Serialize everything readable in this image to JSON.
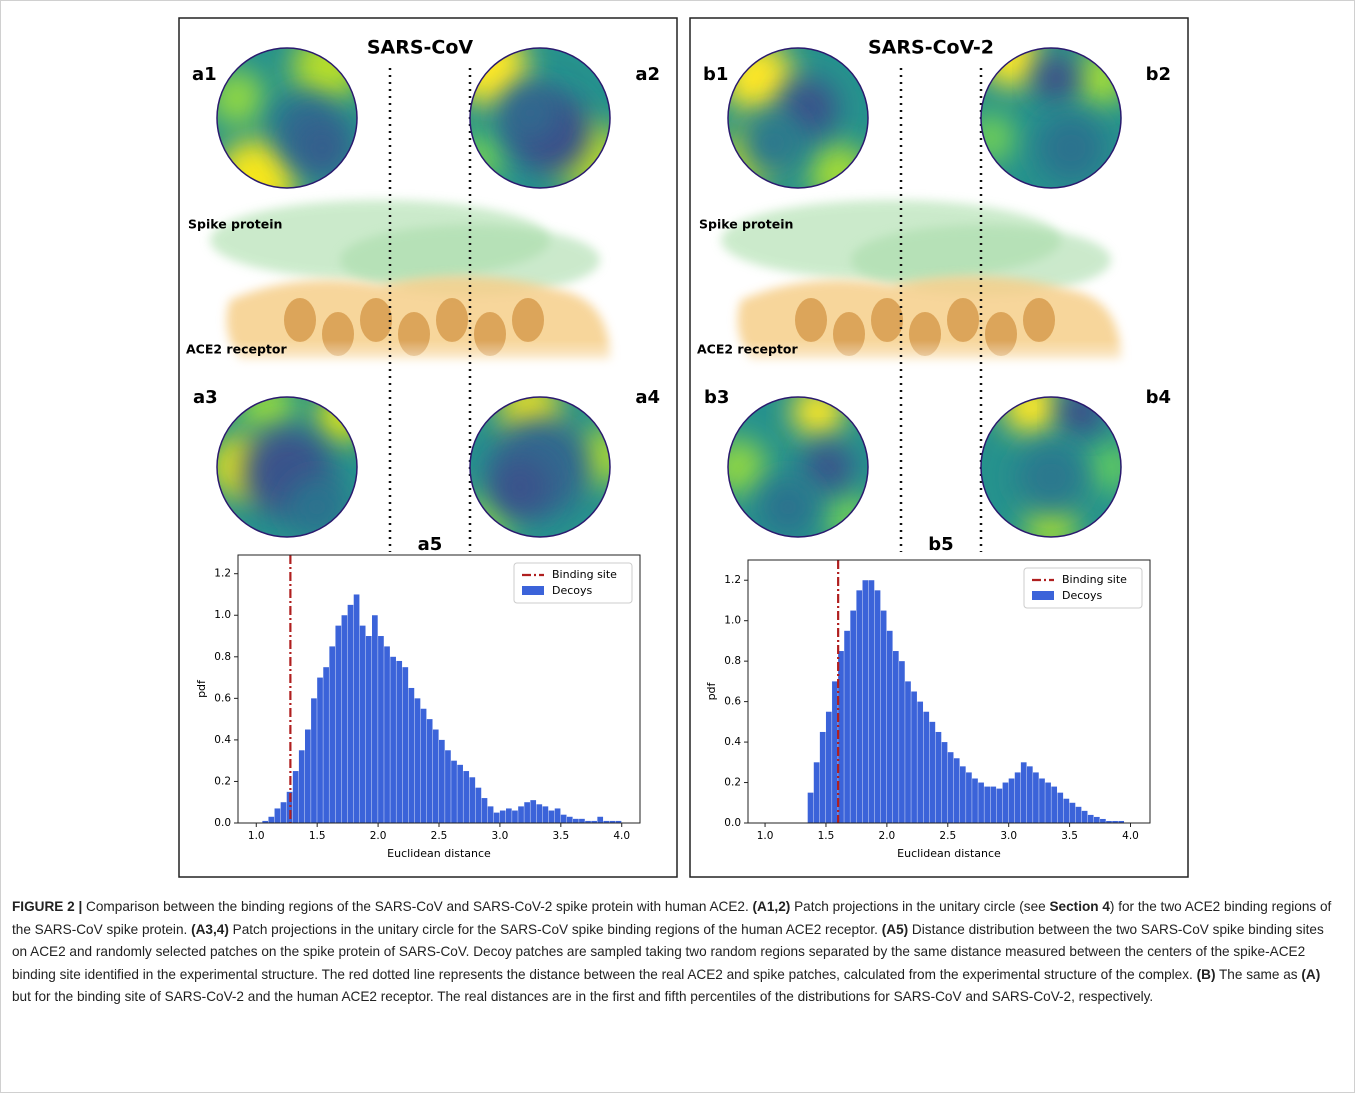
{
  "panels": [
    {
      "title": "SARS-CoV",
      "labels": [
        "a1",
        "a2",
        "a3",
        "a4",
        "a5"
      ],
      "spike_label": "Spike protein",
      "receptor_label": "ACE2 receptor"
    },
    {
      "title": "SARS-CoV-2",
      "labels": [
        "b1",
        "b2",
        "b3",
        "b4",
        "b5"
      ],
      "spike_label": "Spike protein",
      "receptor_label": "ACE2 receptor"
    }
  ],
  "chart_data": [
    {
      "type": "histogram",
      "xlabel": "Euclidean distance",
      "ylabel": "pdf",
      "bins": [
        1.0,
        1.05,
        1.1,
        1.15,
        1.2,
        1.25,
        1.3,
        1.35,
        1.4,
        1.45,
        1.5,
        1.55,
        1.6,
        1.65,
        1.7,
        1.75,
        1.8,
        1.85,
        1.9,
        1.95,
        2.0,
        2.05,
        2.1,
        2.15,
        2.2,
        2.25,
        2.3,
        2.35,
        2.4,
        2.45,
        2.5,
        2.55,
        2.6,
        2.65,
        2.7,
        2.75,
        2.8,
        2.85,
        2.9,
        2.95,
        3.0,
        3.05,
        3.1,
        3.15,
        3.2,
        3.25,
        3.3,
        3.35,
        3.4,
        3.45,
        3.5,
        3.55,
        3.6,
        3.65,
        3.7,
        3.75,
        3.8,
        3.85,
        3.9,
        3.95,
        4.0
      ],
      "series": [
        {
          "name": "Decoys",
          "color": "#3b63d9",
          "values": [
            0,
            0.01,
            0.03,
            0.07,
            0.1,
            0.15,
            0.25,
            0.35,
            0.45,
            0.6,
            0.7,
            0.75,
            0.85,
            0.95,
            1.0,
            1.05,
            1.1,
            0.95,
            0.9,
            1.0,
            0.9,
            0.85,
            0.8,
            0.78,
            0.75,
            0.65,
            0.6,
            0.55,
            0.5,
            0.45,
            0.4,
            0.35,
            0.3,
            0.28,
            0.25,
            0.22,
            0.17,
            0.12,
            0.08,
            0.05,
            0.06,
            0.07,
            0.06,
            0.08,
            0.1,
            0.11,
            0.09,
            0.08,
            0.06,
            0.07,
            0.04,
            0.03,
            0.02,
            0.02,
            0.01,
            0.01,
            0.03,
            0.01,
            0.01,
            0.01
          ]
        }
      ],
      "reference_line": {
        "name": "Binding site",
        "x": 1.28,
        "color": "#b01f1f"
      },
      "xlim": [
        0.85,
        4.15
      ],
      "ylim": [
        0,
        1.29
      ],
      "xticks": [
        {
          "value": 1.0,
          "label": "1.0"
        },
        1.5,
        {
          "value": 2.0,
          "label": "2.0"
        },
        2.5,
        {
          "value": 3.0,
          "label": "3.0"
        },
        3.5,
        {
          "value": 4.0,
          "label": "4.0"
        }
      ],
      "yticks": [
        {
          "value": 0,
          "label": "0.0"
        },
        0.2,
        0.4,
        0.6,
        0.8,
        {
          "value": 1.0,
          "label": "1.0"
        },
        1.2
      ],
      "legend": "upper right"
    },
    {
      "type": "histogram",
      "xlabel": "Euclidean distance",
      "ylabel": "pdf",
      "bins": [
        1.0,
        1.05,
        1.1,
        1.15,
        1.2,
        1.25,
        1.3,
        1.35,
        1.4,
        1.45,
        1.5,
        1.55,
        1.6,
        1.65,
        1.7,
        1.75,
        1.8,
        1.85,
        1.9,
        1.95,
        2.0,
        2.05,
        2.1,
        2.15,
        2.2,
        2.25,
        2.3,
        2.35,
        2.4,
        2.45,
        2.5,
        2.55,
        2.6,
        2.65,
        2.7,
        2.75,
        2.8,
        2.85,
        2.9,
        2.95,
        3.0,
        3.05,
        3.1,
        3.15,
        3.2,
        3.25,
        3.3,
        3.35,
        3.4,
        3.45,
        3.5,
        3.55,
        3.6,
        3.65,
        3.7,
        3.75,
        3.8,
        3.85,
        3.9,
        3.95,
        4.0
      ],
      "series": [
        {
          "name": "Decoys",
          "color": "#3b63d9",
          "values": [
            0,
            0,
            0,
            0,
            0,
            0,
            0,
            0.15,
            0.3,
            0.45,
            0.55,
            0.7,
            0.85,
            0.95,
            1.05,
            1.15,
            1.2,
            1.2,
            1.15,
            1.05,
            0.95,
            0.85,
            0.8,
            0.7,
            0.65,
            0.6,
            0.55,
            0.5,
            0.45,
            0.4,
            0.35,
            0.32,
            0.28,
            0.25,
            0.22,
            0.2,
            0.18,
            0.18,
            0.17,
            0.2,
            0.22,
            0.25,
            0.3,
            0.28,
            0.25,
            0.22,
            0.2,
            0.18,
            0.15,
            0.12,
            0.1,
            0.08,
            0.06,
            0.04,
            0.03,
            0.02,
            0.01,
            0.01,
            0.01,
            0
          ]
        }
      ],
      "reference_line": {
        "name": "Binding site",
        "x": 1.6,
        "color": "#b01f1f"
      },
      "xlim": [
        0.86,
        4.16
      ],
      "ylim": [
        0,
        1.3
      ],
      "xticks": [
        {
          "value": 1.0,
          "label": "1.0"
        },
        1.5,
        {
          "value": 2.0,
          "label": "2.0"
        },
        2.5,
        {
          "value": 3.0,
          "label": "3.0"
        },
        3.5,
        {
          "value": 4.0,
          "label": "4.0"
        }
      ],
      "yticks": [
        {
          "value": 0,
          "label": "0.0"
        },
        0.2,
        0.4,
        0.6,
        0.8,
        {
          "value": 1.0,
          "label": "1.0"
        },
        1.2
      ],
      "legend": "upper right"
    }
  ],
  "caption": [
    {
      "text": "FIGURE 2 |",
      "bold": true
    },
    {
      "text": " Comparison between the binding regions of the SARS-CoV and SARS-CoV-2 spike protein with human ACE2. "
    },
    {
      "text": "(A1,2)",
      "bold": true
    },
    {
      "text": " Patch projections in the unitary circle (see "
    },
    {
      "text": "Section 4",
      "bold": true
    },
    {
      "text": ") for the two ACE2 binding regions of the SARS-CoV spike protein. "
    },
    {
      "text": "(A3,4)",
      "bold": true
    },
    {
      "text": " Patch projections in the unitary circle for the SARS-CoV spike binding regions of the human ACE2 receptor. "
    },
    {
      "text": "(A5)",
      "bold": true
    },
    {
      "text": " Distance distribution between the two SARS-CoV spike binding sites on ACE2 and randomly selected patches on the spike protein of SARS-CoV. Decoy patches are sampled taking two random regions separated by the same distance measured between the centers of the spike-ACE2 binding site identified in the experimental structure. The red dotted line represents the distance between the real ACE2 and spike patches, calculated from the experimental structure of the complex. "
    },
    {
      "text": "(B)",
      "bold": true
    },
    {
      "text": " The same as "
    },
    {
      "text": "(A)",
      "bold": true
    },
    {
      "text": " but for the binding site of SARS-CoV-2 and the human ACE2 receptor. The real distances are in the first and fifth percentiles of the distributions for SARS-CoV and SARS-CoV-2, respectively."
    }
  ]
}
